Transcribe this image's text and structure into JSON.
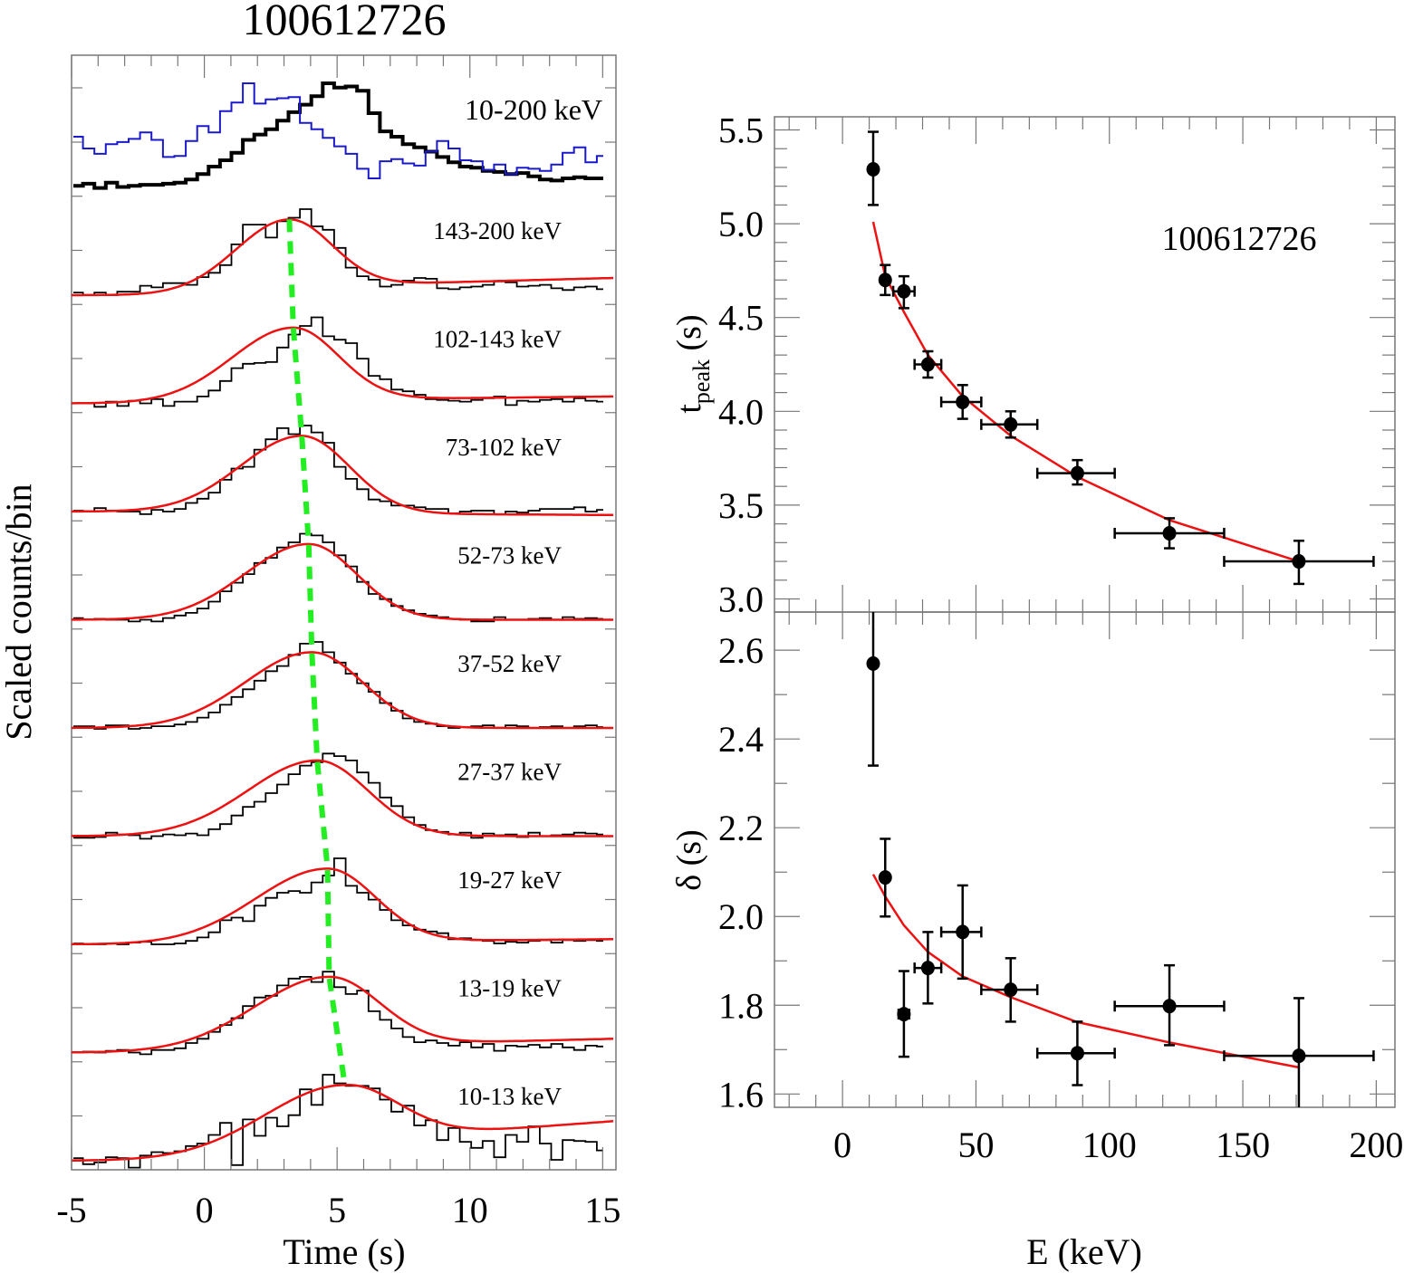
{
  "chart_data": [
    {
      "type": "line",
      "panel": "light-curves",
      "title": "100612726",
      "xlabel": "Time (s)",
      "ylabel": "Scaled counts/bin",
      "xlim": [
        -5,
        15.5
      ],
      "xticks": [
        -5,
        0,
        5,
        10,
        15
      ],
      "xtick_labels": [
        "-5",
        "0",
        "5",
        "10",
        "15"
      ],
      "bin_start": -5.0,
      "bin_width": 0.43,
      "peak_line_color": "#22ee22",
      "fit_color": "#ee1111",
      "summed": {
        "label": "10-200 keV",
        "series": [
          {
            "name": "10-200 keV summed",
            "color": "#000000",
            "values": [
              0.04,
              0.06,
              0.02,
              0.07,
              0.03,
              0.04,
              0.05,
              0.05,
              0.06,
              0.07,
              0.1,
              0.15,
              0.22,
              0.28,
              0.35,
              0.47,
              0.52,
              0.57,
              0.65,
              0.73,
              0.8,
              0.88,
              1.0,
              0.96,
              0.97,
              0.93,
              0.72,
              0.55,
              0.5,
              0.43,
              0.4,
              0.36,
              0.31,
              0.26,
              0.22,
              0.21,
              0.18,
              0.17,
              0.15,
              0.16,
              0.13,
              0.1,
              0.09,
              0.11,
              0.12,
              0.11,
              0.11
            ]
          },
          {
            "name": "10-200 keV background-comparison",
            "color": "#1a1acc",
            "values": [
              0.5,
              0.39,
              0.34,
              0.43,
              0.45,
              0.48,
              0.54,
              0.47,
              0.31,
              0.32,
              0.46,
              0.6,
              0.54,
              0.74,
              0.82,
              1.0,
              0.81,
              0.85,
              0.86,
              0.87,
              0.63,
              0.57,
              0.49,
              0.41,
              0.34,
              0.2,
              0.11,
              0.27,
              0.29,
              0.25,
              0.23,
              0.36,
              0.46,
              0.39,
              0.28,
              0.27,
              0.19,
              0.24,
              0.15,
              0.21,
              0.2,
              0.18,
              0.24,
              0.35,
              0.4,
              0.26,
              0.32
            ]
          }
        ]
      },
      "bands": [
        {
          "label": "143-200 keV",
          "t_peak": 3.2,
          "width_rise": 2.0,
          "width_decay": 1.6,
          "base_left": 0.0,
          "base_right": 0.1,
          "values": [
            0.03,
            0.0,
            0.03,
            0.0,
            0.04,
            0.04,
            0.11,
            0.09,
            0.14,
            0.14,
            0.12,
            0.21,
            0.26,
            0.35,
            0.59,
            0.82,
            0.82,
            0.67,
            0.86,
            0.9,
            1.0,
            0.8,
            0.76,
            0.55,
            0.32,
            0.22,
            0.18,
            0.1,
            0.12,
            0.17,
            0.2,
            0.19,
            0.08,
            0.07,
            0.09,
            0.1,
            0.12,
            0.16,
            0.15,
            0.1,
            0.11,
            0.12,
            0.08,
            0.06,
            0.09,
            0.1,
            0.07
          ]
        },
        {
          "label": "102-143 keV",
          "t_peak": 3.35,
          "width_rise": 2.3,
          "width_decay": 1.7,
          "base_left": 0.0,
          "base_right": 0.04,
          "values": [
            0.0,
            0.0,
            -0.04,
            0.02,
            -0.03,
            0.03,
            0.0,
            0.05,
            -0.03,
            0.02,
            0.02,
            0.08,
            0.15,
            0.26,
            0.41,
            0.46,
            0.47,
            0.48,
            0.65,
            0.8,
            0.9,
            1.0,
            0.78,
            0.74,
            0.7,
            0.52,
            0.32,
            0.28,
            0.16,
            0.14,
            0.1,
            0.05,
            0.04,
            0.03,
            0.02,
            0.04,
            0.06,
            0.08,
            -0.02,
            0.03,
            0.02,
            0.04,
            0.05,
            0.02,
            0.06,
            0.03,
            0.02
          ]
        },
        {
          "label": "73-102 keV",
          "t_peak": 3.67,
          "width_rise": 2.3,
          "width_decay": 1.8,
          "base_left": 0.0,
          "base_right": -0.02,
          "values": [
            0.01,
            0.0,
            0.04,
            0.01,
            0.0,
            0.0,
            -0.03,
            0.02,
            0.0,
            0.03,
            0.1,
            0.15,
            0.22,
            0.37,
            0.5,
            0.52,
            0.72,
            0.84,
            0.97,
            0.9,
            1.0,
            0.92,
            0.8,
            0.52,
            0.38,
            0.26,
            0.14,
            0.12,
            0.07,
            0.07,
            0.05,
            0.03,
            0.03,
            -0.02,
            0.0,
            0.01,
            0.01,
            -0.03,
            0.0,
            -0.01,
            0.01,
            0.03,
            0.03,
            0.03,
            0.05,
            0.0,
            0.02
          ]
        },
        {
          "label": "52-73 keV",
          "t_peak": 3.93,
          "width_rise": 2.4,
          "width_decay": 1.8,
          "base_left": 0.0,
          "base_right": 0.0,
          "values": [
            0.02,
            0.0,
            0.01,
            0.0,
            0.0,
            -0.02,
            0.0,
            -0.02,
            0.02,
            0.05,
            0.08,
            0.13,
            0.21,
            0.33,
            0.43,
            0.53,
            0.66,
            0.72,
            0.84,
            0.9,
            1.0,
            0.98,
            0.9,
            0.75,
            0.62,
            0.44,
            0.3,
            0.24,
            0.16,
            0.11,
            0.07,
            0.05,
            0.03,
            0.01,
            0.0,
            -0.02,
            -0.02,
            0.03,
            0.0,
            0.0,
            0.01,
            0.02,
            0.0,
            0.03,
            0.01,
            0.02,
            0.01
          ]
        },
        {
          "label": "37-52 keV",
          "t_peak": 4.05,
          "width_rise": 2.5,
          "width_decay": 1.9,
          "base_left": 0.0,
          "base_right": 0.0,
          "values": [
            0.02,
            0.02,
            -0.01,
            0.03,
            0.03,
            -0.01,
            0.0,
            0.02,
            0.02,
            0.04,
            0.07,
            0.12,
            0.18,
            0.27,
            0.36,
            0.45,
            0.55,
            0.66,
            0.72,
            0.85,
            0.98,
            1.0,
            0.88,
            0.76,
            0.63,
            0.52,
            0.42,
            0.29,
            0.2,
            0.11,
            0.07,
            0.05,
            0.02,
            0.0,
            0.01,
            0.02,
            0.03,
            0.0,
            0.03,
            0.02,
            0.0,
            0.01,
            0.02,
            0.0,
            0.02,
            0.03,
            0.01
          ]
        },
        {
          "label": "27-37 keV",
          "t_peak": 4.25,
          "width_rise": 2.6,
          "width_decay": 1.9,
          "base_left": 0.0,
          "base_right": 0.0,
          "values": [
            -0.02,
            -0.02,
            -0.01,
            0.04,
            0.02,
            0.01,
            -0.03,
            0.0,
            0.02,
            0.01,
            0.03,
            0.01,
            0.08,
            0.14,
            0.24,
            0.34,
            0.4,
            0.5,
            0.6,
            0.72,
            0.82,
            0.86,
            0.96,
            0.93,
            0.88,
            0.74,
            0.62,
            0.45,
            0.35,
            0.22,
            0.13,
            0.07,
            0.05,
            0.02,
            0.04,
            -0.02,
            0.03,
            0.01,
            0.02,
            -0.01,
            0.04,
            0.0,
            0.01,
            0.02,
            0.04,
            0.03,
            0.02
          ]
        },
        {
          "label": "19-27 keV",
          "t_peak": 4.64,
          "width_rise": 2.7,
          "width_decay": 1.8,
          "base_left": 0.0,
          "base_right": 0.03,
          "values": [
            0.01,
            0.0,
            0.0,
            0.01,
            0.0,
            0.02,
            0.03,
            0.0,
            0.0,
            0.01,
            0.04,
            0.08,
            0.14,
            0.28,
            0.31,
            0.27,
            0.45,
            0.54,
            0.6,
            0.62,
            0.6,
            0.72,
            0.8,
            1.0,
            0.68,
            0.6,
            0.52,
            0.4,
            0.28,
            0.22,
            0.17,
            0.15,
            0.13,
            0.06,
            0.07,
            0.05,
            0.04,
            0.01,
            0.03,
            0.02,
            0.04,
            0.05,
            0.02,
            0.05,
            0.04,
            0.05,
            0.04
          ]
        },
        {
          "label": "13-19 keV",
          "t_peak": 4.7,
          "width_rise": 2.8,
          "width_decay": 1.9,
          "base_left": 0.0,
          "base_right": 0.08,
          "values": [
            0.0,
            0.01,
            0.0,
            0.02,
            0.03,
            0.0,
            -0.02,
            0.03,
            0.03,
            0.05,
            0.11,
            0.16,
            0.24,
            0.32,
            0.4,
            0.54,
            0.64,
            0.66,
            0.78,
            0.86,
            0.88,
            0.82,
            0.94,
            0.76,
            0.68,
            0.72,
            0.48,
            0.38,
            0.28,
            0.18,
            0.12,
            0.14,
            0.11,
            0.08,
            0.12,
            0.06,
            0.1,
            0.02,
            0.08,
            0.07,
            0.09,
            0.06,
            0.1,
            0.06,
            0.03,
            0.08,
            0.07
          ]
        },
        {
          "label": "10-13 keV",
          "t_peak": 5.29,
          "width_rise": 3.0,
          "width_decay": 2.0,
          "base_left": 0.0,
          "base_right": 0.23,
          "values": [
            0.03,
            -0.04,
            -0.02,
            0.04,
            0.03,
            -0.08,
            0.06,
            0.1,
            0.09,
            0.11,
            0.17,
            0.2,
            0.3,
            0.44,
            -0.05,
            0.48,
            0.29,
            0.5,
            0.4,
            0.53,
            0.83,
            0.65,
            1.0,
            0.9,
            0.87,
            0.87,
            0.84,
            0.71,
            0.57,
            0.64,
            0.41,
            0.47,
            0.24,
            0.38,
            0.22,
            0.15,
            0.23,
            0.04,
            0.3,
            0.22,
            0.4,
            0.2,
            0.01,
            0.24,
            0.23,
            0.22,
            0.12
          ]
        }
      ]
    },
    {
      "type": "scatter",
      "panel": "t-peak-vs-energy",
      "annotation": "100612726",
      "xlabel": "E (keV)",
      "ylabel_main": "t",
      "ylabel_sub": "peak",
      "ylabel_unit": " (s)",
      "xlim": [
        -25.5,
        207
      ],
      "ylim": [
        2.93,
        5.57
      ],
      "yticks": [
        3.0,
        3.5,
        4.0,
        4.5,
        5.0,
        5.5
      ],
      "ytick_labels": [
        "3.0",
        "3.5",
        "4.0",
        "4.5",
        "5.0",
        "5.5"
      ],
      "points": [
        {
          "E": 11.5,
          "E_lo": 11.5,
          "E_hi": 11.5,
          "y": 5.29,
          "y_lo": 5.1,
          "y_hi": 5.49
        },
        {
          "E": 16.0,
          "E_lo": 15.0,
          "E_hi": 17.0,
          "y": 4.7,
          "y_lo": 4.62,
          "y_hi": 4.78
        },
        {
          "E": 23.0,
          "E_lo": 19.0,
          "E_hi": 27.0,
          "y": 4.64,
          "y_lo": 4.55,
          "y_hi": 4.72
        },
        {
          "E": 32.0,
          "E_lo": 27.0,
          "E_hi": 37.0,
          "y": 4.25,
          "y_lo": 4.18,
          "y_hi": 4.32
        },
        {
          "E": 45.0,
          "E_lo": 37.0,
          "E_hi": 52.0,
          "y": 4.05,
          "y_lo": 3.96,
          "y_hi": 4.14
        },
        {
          "E": 63.0,
          "E_lo": 52.0,
          "E_hi": 73.0,
          "y": 3.93,
          "y_lo": 3.86,
          "y_hi": 4.0
        },
        {
          "E": 88.0,
          "E_lo": 73.0,
          "E_hi": 102.0,
          "y": 3.67,
          "y_lo": 3.61,
          "y_hi": 3.74
        },
        {
          "E": 122.5,
          "E_lo": 102.0,
          "E_hi": 143.0,
          "y": 3.35,
          "y_lo": 3.27,
          "y_hi": 3.43
        },
        {
          "E": 171.0,
          "E_lo": 143.0,
          "E_hi": 199.0,
          "y": 3.2,
          "y_lo": 3.08,
          "y_hi": 3.31
        }
      ],
      "fit": {
        "color": "#ee1111",
        "E": [
          11.5,
          16,
          23,
          32,
          45,
          63,
          88,
          122.5,
          171
        ],
        "y": [
          5.01,
          4.72,
          4.53,
          4.3,
          4.08,
          3.87,
          3.65,
          3.42,
          3.2
        ]
      }
    },
    {
      "type": "scatter",
      "panel": "delta-vs-energy",
      "xlabel": "E (keV)",
      "ylabel": "δ (s)",
      "xlim": [
        -25.5,
        207
      ],
      "ylim": [
        1.57,
        2.686
      ],
      "xticks": [
        0,
        50,
        100,
        150,
        200
      ],
      "xtick_labels": [
        "0",
        "50",
        "100",
        "150",
        "200"
      ],
      "yticks": [
        1.6,
        1.8,
        2.0,
        2.2,
        2.4,
        2.6
      ],
      "ytick_labels": [
        "1.6",
        "1.8",
        "2.0",
        "2.2",
        "2.4",
        "2.6"
      ],
      "points": [
        {
          "E": 11.5,
          "E_lo": 11.5,
          "E_hi": 11.5,
          "y": 2.57,
          "y_lo": 2.34,
          "y_hi": 2.7
        },
        {
          "E": 16.0,
          "E_lo": 15.0,
          "E_hi": 17.0,
          "y": 2.088,
          "y_lo": 2.0,
          "y_hi": 2.175
        },
        {
          "E": 23.0,
          "E_lo": 21.0,
          "E_hi": 25.0,
          "y": 1.78,
          "y_lo": 1.684,
          "y_hi": 1.877
        },
        {
          "E": 32.0,
          "E_lo": 27.0,
          "E_hi": 37.0,
          "y": 1.884,
          "y_lo": 1.804,
          "y_hi": 1.965
        },
        {
          "E": 45.0,
          "E_lo": 37.0,
          "E_hi": 52.0,
          "y": 1.965,
          "y_lo": 1.86,
          "y_hi": 2.07
        },
        {
          "E": 63.0,
          "E_lo": 52.0,
          "E_hi": 73.0,
          "y": 1.835,
          "y_lo": 1.763,
          "y_hi": 1.906
        },
        {
          "E": 88.0,
          "E_lo": 73.0,
          "E_hi": 102.0,
          "y": 1.692,
          "y_lo": 1.62,
          "y_hi": 1.763
        },
        {
          "E": 122.5,
          "E_lo": 102.0,
          "E_hi": 143.0,
          "y": 1.798,
          "y_lo": 1.71,
          "y_hi": 1.89
        },
        {
          "E": 171.0,
          "E_lo": 143.0,
          "E_hi": 199.0,
          "y": 1.686,
          "y_lo": 1.55,
          "y_hi": 1.816
        }
      ],
      "fit": {
        "color": "#ee1111",
        "E": [
          11.5,
          16,
          23,
          32,
          45,
          63,
          88,
          122.5,
          171
        ],
        "y": [
          2.095,
          2.045,
          1.98,
          1.92,
          1.865,
          1.818,
          1.762,
          1.716,
          1.66
        ]
      }
    }
  ]
}
